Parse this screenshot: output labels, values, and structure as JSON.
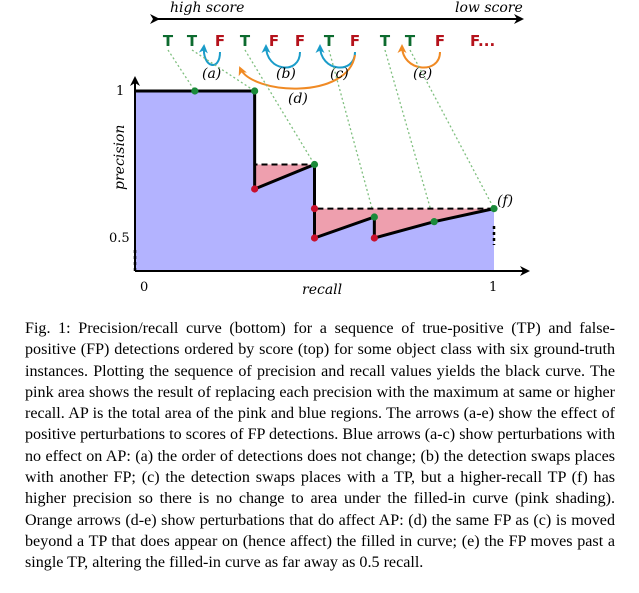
{
  "figure": {
    "score_axis": {
      "left_label": "high score",
      "right_label": "low score"
    },
    "sequence": [
      {
        "label": "T",
        "color": "#0d6b2f"
      },
      {
        "label": "T",
        "color": "#0d6b2f"
      },
      {
        "label": "F",
        "color": "#b5121b"
      },
      {
        "label": "T",
        "color": "#0d6b2f"
      },
      {
        "label": "F",
        "color": "#b5121b"
      },
      {
        "label": "F",
        "color": "#b5121b"
      },
      {
        "label": "T",
        "color": "#0d6b2f"
      },
      {
        "label": "F",
        "color": "#b5121b"
      },
      {
        "label": "T",
        "color": "#0d6b2f"
      },
      {
        "label": "T",
        "color": "#0d6b2f"
      },
      {
        "label": "F",
        "color": "#b5121b"
      },
      {
        "label": "F...",
        "color": "#b5121b"
      }
    ],
    "arrow_labels": {
      "a": "(a)",
      "b": "(b)",
      "c": "(c)",
      "d": "(d)",
      "e": "(e)",
      "f": "(f)"
    },
    "arrow_colors": {
      "blue": "#1a9cc9",
      "orange": "#f08a24"
    },
    "curve_colors": {
      "blue_area": "#b3b3ff",
      "pink_area": "#ee9fae",
      "tp_point": "#1a8a3a",
      "fp_point": "#c8102e",
      "connector": "#7fbf7f"
    },
    "axes": {
      "y_label": "precision",
      "x_label": "recall",
      "y_ticks": [
        "1",
        "0.5"
      ],
      "x_ticks": [
        "0",
        "1"
      ]
    }
  },
  "chart_data": {
    "type": "line",
    "title": "",
    "xlabel": "recall",
    "ylabel": "precision",
    "series": [
      {
        "x": [
          0,
          0.1667,
          0.3333,
          0.3333,
          0.5,
          0.5,
          0.5,
          0.6667,
          0.6667,
          0.8333,
          1.0
        ],
        "y": [
          1.0,
          1.0,
          1.0,
          0.6667,
          0.75,
          0.6,
          0.5,
          0.5714,
          0.5,
          0.5556,
          0.6
        ]
      }
    ],
    "filled_in_curve": {
      "x": [
        0,
        0.3333,
        0.3333,
        0.5,
        0.5,
        1.0
      ],
      "y": [
        1.0,
        1.0,
        0.75,
        0.75,
        0.6,
        0.6
      ]
    }
  },
  "caption": {
    "text": "Fig. 1: Precision/recall curve (bottom) for a sequence of true-positive (TP) and false-positive (FP) detections ordered by score (top) for some object class with six ground-truth instances. Plotting the sequence of precision and recall values yields the black curve. The pink area shows the result of replacing each precision with the maximum at same or higher recall. AP is the total area of the pink and blue regions. The arrows (a-e) show the effect of positive perturbations to scores of FP detections. Blue arrows (a-c) show perturbations with no effect on AP: (a) the order of detections does not change; (b) the detection swaps places with another FP; (c) the detection swaps places with a TP, but a higher-recall TP (f) has higher precision so there is no change to area under the filled-in curve (pink shading). Orange arrows (d-e) show perturbations that do affect AP: (d) the same FP as (c) is moved beyond a TP that does appear on (hence affect) the filled in curve; (e) the FP moves past a single TP, altering the filled-in curve as far away as 0.5 recall."
  }
}
